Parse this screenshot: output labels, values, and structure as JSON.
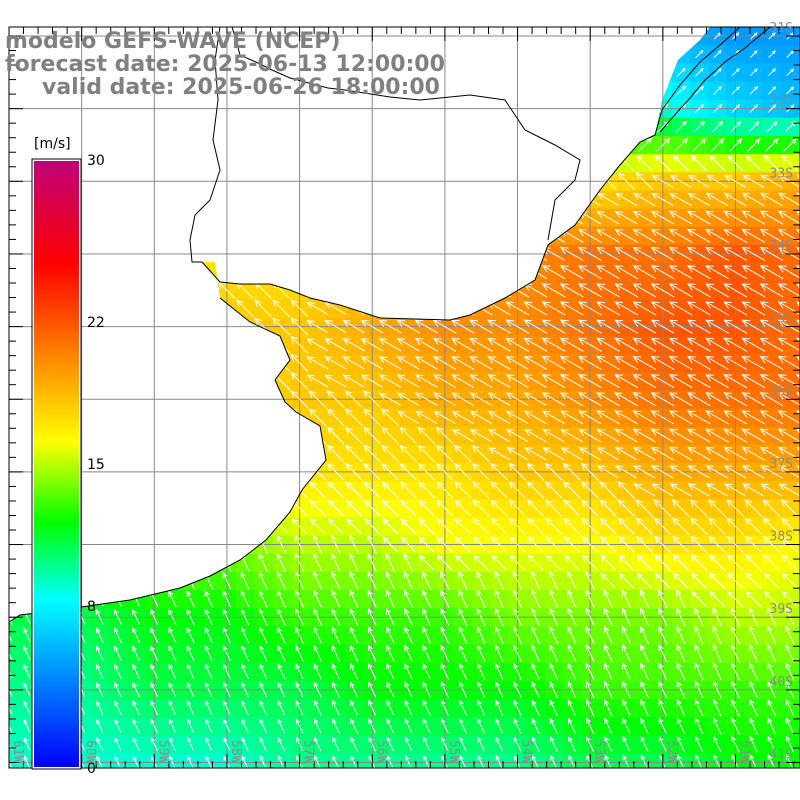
{
  "title": {
    "model": "modelo GEFS-WAVE (NCEP)",
    "forecast": "forecast date: 2025-06-13 12:00:00",
    "valid": "valid date: 2025-06-26 18:00:00"
  },
  "colorbar": {
    "unit": "[m/s]",
    "min": 0,
    "max": 30,
    "labels": [
      {
        "value": 30,
        "text": "30"
      },
      {
        "value": 22,
        "text": "22"
      },
      {
        "value": 15,
        "text": "15"
      },
      {
        "value": 8,
        "text": "8"
      },
      {
        "value": 0,
        "text": "0"
      }
    ],
    "stops": [
      {
        "value": 0,
        "color": "#0000ff"
      },
      {
        "value": 8.3,
        "color": "#00ffff"
      },
      {
        "value": 12.1,
        "color": "#00ff00"
      },
      {
        "value": 16.1,
        "color": "#ffff00"
      },
      {
        "value": 20.5,
        "color": "#ff8000"
      },
      {
        "value": 24.9,
        "color": "#ff0000"
      },
      {
        "value": 30,
        "color": "#c00078"
      }
    ]
  },
  "axes": {
    "lon_labels": [
      "61W",
      "60W",
      "59W",
      "58W",
      "57W",
      "56W",
      "55W",
      "54W",
      "53W",
      "52W",
      "51W"
    ],
    "lat_labels": [
      "31S",
      "32S",
      "33S",
      "34S",
      "35S",
      "36S",
      "37S",
      "38S",
      "39S",
      "40S",
      "41S"
    ]
  },
  "chart_data": {
    "type": "heatmap",
    "variable": "wind speed",
    "units": "m/s",
    "lats": [
      -31,
      -32,
      -33,
      -34,
      -35,
      -36,
      -37,
      -38,
      -39,
      -40,
      -41
    ],
    "lons": [
      -61,
      -60,
      -59,
      -58,
      -57,
      -56,
      -55,
      -54,
      -53,
      -52,
      -51,
      -50
    ],
    "speed_ms": [
      [
        6,
        6,
        6,
        6,
        6,
        6,
        6,
        6,
        6,
        6,
        5,
        5
      ],
      [
        8,
        8,
        8,
        8,
        8,
        8,
        8,
        8,
        9,
        9,
        7,
        6
      ],
      [
        15,
        15,
        15,
        15,
        15,
        16,
        17,
        17,
        17,
        18,
        18,
        19
      ],
      [
        16,
        16,
        16,
        17,
        17,
        18,
        19,
        20,
        21,
        21,
        22,
        21
      ],
      [
        15,
        16,
        17,
        18,
        18,
        19,
        20,
        20,
        21,
        22,
        22,
        21
      ],
      [
        15,
        16,
        17,
        17,
        18,
        18,
        19,
        19,
        20,
        21,
        21,
        21
      ],
      [
        14,
        15,
        16,
        17,
        17,
        17,
        17,
        18,
        18,
        19,
        19,
        19
      ],
      [
        13,
        13,
        14,
        14,
        15,
        15,
        16,
        16,
        16,
        17,
        17,
        16
      ],
      [
        11,
        11,
        12,
        12,
        13,
        13,
        13,
        14,
        14,
        14,
        15,
        15
      ],
      [
        10,
        10,
        11,
        11,
        11,
        12,
        12,
        12,
        13,
        13,
        13,
        13
      ],
      [
        9,
        9,
        9,
        9,
        10,
        10,
        10,
        10,
        11,
        11,
        12,
        12
      ]
    ]
  }
}
